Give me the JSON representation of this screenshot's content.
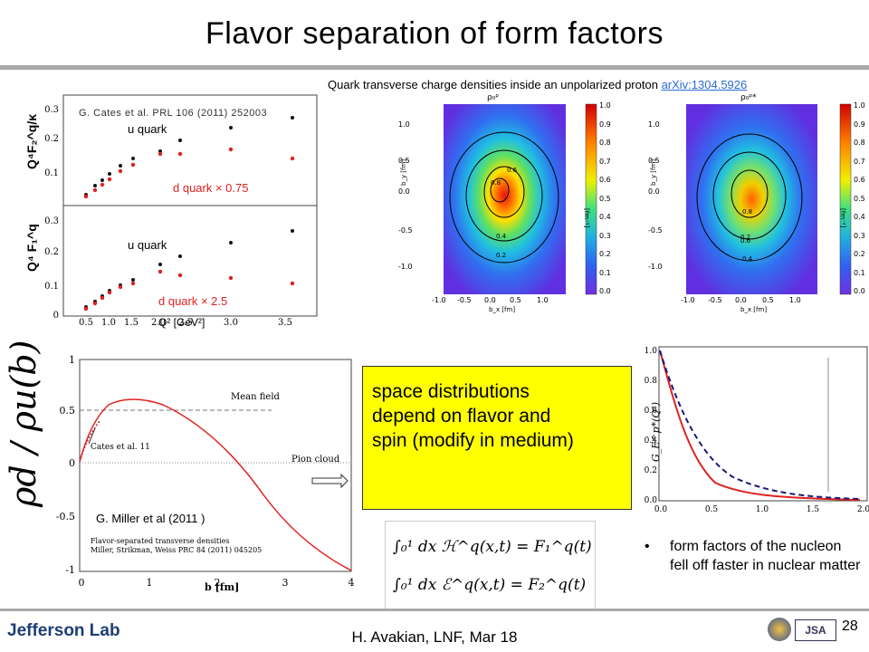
{
  "slide": {
    "title": "Flavor separation of form factors",
    "subtitle_text": "Quark transverse charge densities inside an unpolarized proton",
    "subtitle_link": "arXiv:1304.5926",
    "page_number": "28",
    "footer": "H. Avakian, LNF, Mar 18",
    "logo_text": "Jefferson Lab"
  },
  "left_plot": {
    "citation": "G. Cates et al. PRL 106 (2011) 252003",
    "ylabel_top": "Q⁴F₂^q/κ",
    "ylabel_bottom": "Q⁴ F₁^q",
    "top_yticks": [
      "0.3",
      "0.2",
      "0.1"
    ],
    "bottom_yticks": [
      "0.3",
      "0.2",
      "0.1",
      "0"
    ],
    "xticks": [
      "0.5",
      "1.0",
      "1.5",
      "2.0",
      "2.5",
      "3.0",
      "3.5"
    ],
    "xlabel": "Q² [GeV²]",
    "top_labels": {
      "u": "u quark",
      "d": "d quark × 0.75"
    },
    "bottom_labels": {
      "u": "u quark",
      "d": "d quark × 2.5"
    }
  },
  "ratio_plot": {
    "ylabel": "ρd / ρu(b)",
    "yticks": [
      "1",
      "0.5",
      "0",
      "-0.5",
      "-1"
    ],
    "xticks": [
      "0",
      "1",
      "2",
      "3",
      "4"
    ],
    "xlabel": "b [fm]",
    "mean_field_label": "Mean field",
    "pion_cloud_label": "Pion cloud",
    "cates_label": "Cates et al. 11",
    "miller_label": "G. Miller et al (2011 )",
    "caption_line1": "Flavor-separated transverse densities",
    "caption_line2": "Miller, Strikman, Weiss PRC 84 (2011) 045205"
  },
  "density_maps": {
    "axis_ticks": [
      "-1.0",
      "-0.5",
      "0.0",
      "0.5",
      "1.0"
    ],
    "colorbar_ticks": [
      "1.0",
      "0.9",
      "0.8",
      "0.7",
      "0.6",
      "0.5",
      "0.4",
      "0.3",
      "0.2",
      "0.1",
      "0.0"
    ],
    "ylabel": "b_y [fm]",
    "xlabel": "b_x [fm]",
    "unit": "[fm⁻²]",
    "left_label": "ρ₀ᵖ",
    "right_label": "ρ₀ᵖ*",
    "contour_labels_left": [
      "0.8",
      "0.6",
      "0.4",
      "0.2"
    ],
    "contour_labels_right": [
      "0.8",
      "0.6",
      "0.4",
      "0.2"
    ]
  },
  "ge_plot": {
    "ylabel": "G_E^p*(Q²)",
    "yticks": [
      "1.0",
      "0.8",
      "0.6",
      "0.4",
      "0.2",
      "0.0"
    ],
    "xticks": [
      "0.0",
      "0.5",
      "1.0",
      "1.5",
      "2.0"
    ]
  },
  "yellow_box": {
    "line1": "space distributions",
    "line2": "depend on flavor and",
    "line3": "spin (modify in medium)"
  },
  "formulas": {
    "f1": "∫₀¹ dx ℋ^q(x,t) = F₁^q(t)",
    "f2": "∫₀¹ dx ℰ^q(x,t) = F₂^q(t)"
  },
  "bullet": {
    "text": "form factors of the nucleon fell off faster in nuclear matter"
  },
  "colors": {
    "red": "#e02020",
    "navy": "#1a1a7a",
    "yellow": "#ffff00",
    "link": "#2a6ad8"
  }
}
